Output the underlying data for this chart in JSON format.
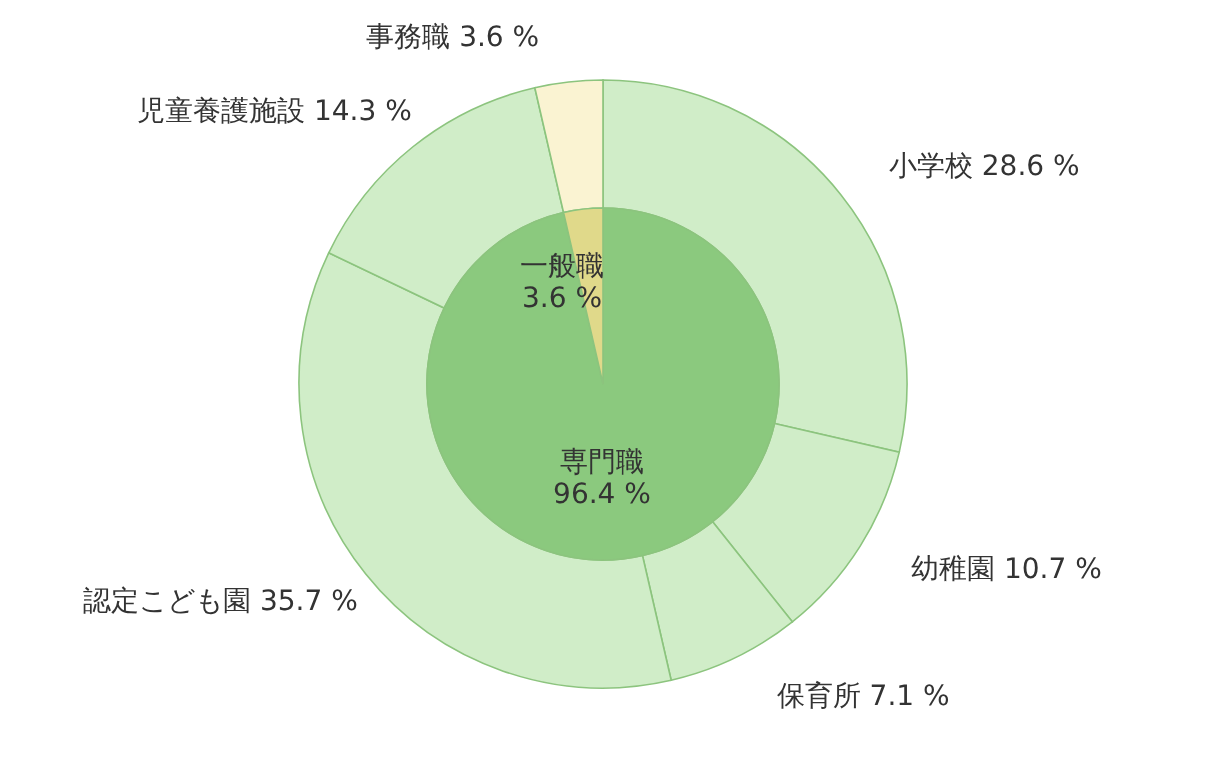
{
  "chart_data": {
    "type": "donut",
    "categories": [
      "専門職",
      "一般職",
      "小学校",
      "幼稚園",
      "保育所",
      "認定こども園",
      "児童養護施設",
      "事務職"
    ],
    "colors": [
      "#8bc97e",
      "#e0d98a",
      "#d0edc8",
      "#d0edc8",
      "#d0edc8",
      "#d0edc8",
      "#d0edc8",
      "#faf3d2"
    ],
    "value_labels": [
      "96.4 %",
      "3.6 %",
      "28.6 %",
      "10.7 %",
      "7.1 %",
      "35.7 %",
      "14.3 %",
      "3.6 %"
    ],
    "series": [
      {
        "values": [
          96.4,
          3.6,
          null,
          null,
          null,
          null,
          null,
          null
        ]
      },
      {
        "values": [
          null,
          null,
          28.6,
          10.7,
          7.1,
          35.7,
          14.3,
          3.6
        ]
      }
    ]
  }
}
